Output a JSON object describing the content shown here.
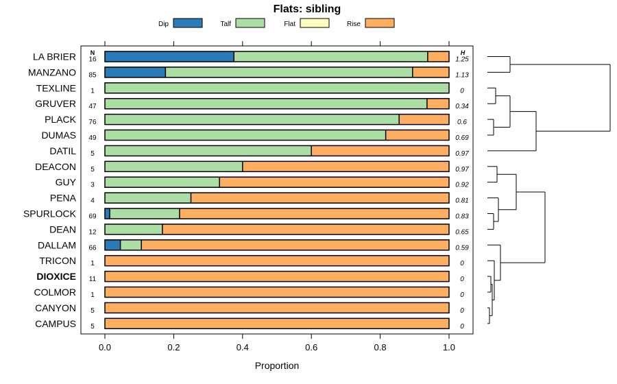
{
  "chart_data": {
    "type": "bar",
    "orientation": "horizontal",
    "stacked": true,
    "title": "Flats: sibling",
    "xlabel": "Proportion",
    "xlim": [
      0,
      1
    ],
    "xticks": [
      "0.0",
      "0.2",
      "0.4",
      "0.6",
      "0.8",
      "1.0"
    ],
    "n_header": "N",
    "h_header": "H",
    "legend": [
      {
        "name": "Dip",
        "color": "#2b7bb9"
      },
      {
        "name": "Talf",
        "color": "#abdda4"
      },
      {
        "name": "Flat",
        "color": "#ffffbf"
      },
      {
        "name": "Rise",
        "color": "#fdae61"
      }
    ],
    "categories": [
      "LA BRIER",
      "MANZANO",
      "TEXLINE",
      "GRUVER",
      "PLACK",
      "DUMAS",
      "DATIL",
      "DEACON",
      "GUY",
      "PENA",
      "SPURLOCK",
      "DEAN",
      "DALLAM",
      "TRICON",
      "DIOXICE",
      "COLMOR",
      "CANYON",
      "CAMPUS"
    ],
    "bold_categories": [
      "DIOXICE"
    ],
    "n": [
      "16",
      "85",
      "1",
      "47",
      "76",
      "49",
      "5",
      "5",
      "3",
      "4",
      "69",
      "12",
      "66",
      "1",
      "11",
      "1",
      "5",
      "5"
    ],
    "h": [
      "1.25",
      "1.13",
      "0",
      "0.34",
      "0.6",
      "0.69",
      "0.97",
      "0.97",
      "0.92",
      "0.81",
      "0.83",
      "0.65",
      "0.59",
      "0",
      "0",
      "0",
      "0",
      "0"
    ],
    "series": [
      {
        "name": "Dip",
        "values": [
          0.375,
          0.176,
          0,
          0,
          0,
          0,
          0,
          0,
          0,
          0,
          0.014,
          0,
          0.045,
          0,
          0,
          0,
          0,
          0
        ]
      },
      {
        "name": "Talf",
        "values": [
          0.563,
          0.718,
          1,
          0.936,
          0.855,
          0.816,
          0.6,
          0.4,
          0.333,
          0.25,
          0.203,
          0.167,
          0.061,
          0,
          0,
          0,
          0,
          0
        ]
      },
      {
        "name": "Flat",
        "values": [
          0,
          0,
          0,
          0,
          0,
          0,
          0,
          0,
          0,
          0,
          0,
          0,
          0,
          0,
          0,
          0,
          0,
          0
        ]
      },
      {
        "name": "Rise",
        "values": [
          0.062,
          0.106,
          0,
          0.064,
          0.145,
          0.184,
          0.4,
          0.6,
          0.667,
          0.75,
          0.783,
          0.833,
          0.894,
          1,
          1,
          1,
          1,
          1
        ]
      }
    ]
  }
}
